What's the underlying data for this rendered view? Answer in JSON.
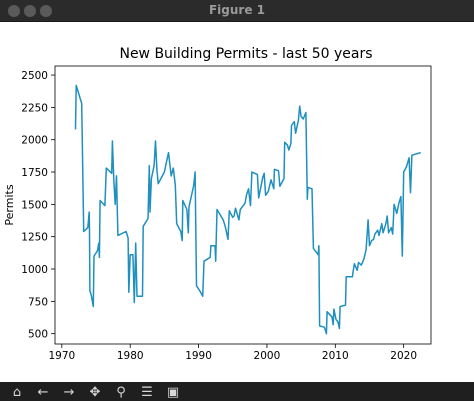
{
  "window": {
    "title": "Figure 1"
  },
  "toolbar": {
    "buttons": [
      {
        "name": "home-icon",
        "glyph": "⌂"
      },
      {
        "name": "back-arrow-icon",
        "glyph": "←"
      },
      {
        "name": "forward-arrow-icon",
        "glyph": "→"
      },
      {
        "name": "pan-icon",
        "glyph": "✥"
      },
      {
        "name": "zoom-icon",
        "glyph": "⚲"
      },
      {
        "name": "configure-subplots-icon",
        "glyph": "☰"
      },
      {
        "name": "save-icon",
        "glyph": "▣"
      }
    ]
  },
  "chart_data": {
    "type": "line",
    "title": "New Building Permits - last 50 years",
    "xlabel": "",
    "ylabel": "Permits",
    "xlim": [
      1969,
      2024
    ],
    "ylim": [
      420,
      2570
    ],
    "xticks": [
      1970,
      1980,
      1990,
      2000,
      2010,
      2020
    ],
    "yticks": [
      500,
      750,
      1000,
      1250,
      1500,
      1750,
      2000,
      2250,
      2500
    ],
    "line_color": "#1f8fbf",
    "grid": false,
    "series": [
      {
        "points": [
          [
            1972.0,
            2080
          ],
          [
            1972.1,
            2420
          ],
          [
            1972.9,
            2280
          ],
          [
            1973.2,
            1290
          ],
          [
            1973.8,
            1320
          ],
          [
            1974.0,
            1440
          ],
          [
            1974.05,
            1290
          ],
          [
            1974.1,
            830
          ],
          [
            1974.3,
            800
          ],
          [
            1974.6,
            710
          ],
          [
            1974.7,
            1100
          ],
          [
            1975.2,
            1140
          ],
          [
            1975.4,
            1200
          ],
          [
            1975.5,
            1090
          ],
          [
            1975.6,
            1530
          ],
          [
            1976.3,
            1490
          ],
          [
            1976.5,
            1780
          ],
          [
            1977.3,
            1740
          ],
          [
            1977.4,
            1990
          ],
          [
            1977.6,
            1690
          ],
          [
            1977.8,
            1500
          ],
          [
            1978.0,
            1720
          ],
          [
            1978.2,
            1260
          ],
          [
            1979.4,
            1290
          ],
          [
            1979.7,
            1240
          ],
          [
            1979.8,
            820
          ],
          [
            1980.0,
            1110
          ],
          [
            1980.4,
            1110
          ],
          [
            1980.6,
            740
          ],
          [
            1980.8,
            1200
          ],
          [
            1981.0,
            790
          ],
          [
            1981.8,
            790
          ],
          [
            1981.9,
            1330
          ],
          [
            1982.6,
            1390
          ],
          [
            1982.8,
            1800
          ],
          [
            1982.9,
            1440
          ],
          [
            1983.1,
            1700
          ],
          [
            1983.5,
            1800
          ],
          [
            1983.7,
            1990
          ],
          [
            1983.9,
            1770
          ],
          [
            1984.1,
            1660
          ],
          [
            1985.0,
            1750
          ],
          [
            1985.2,
            1800
          ],
          [
            1985.6,
            1900
          ],
          [
            1986.0,
            1720
          ],
          [
            1986.3,
            1780
          ],
          [
            1986.6,
            1650
          ],
          [
            1986.8,
            1350
          ],
          [
            1987.4,
            1290
          ],
          [
            1987.6,
            1220
          ],
          [
            1987.7,
            1530
          ],
          [
            1988.3,
            1460
          ],
          [
            1988.5,
            1280
          ],
          [
            1988.6,
            1480
          ],
          [
            1989.3,
            1650
          ],
          [
            1989.5,
            1750
          ],
          [
            1989.7,
            870
          ],
          [
            1990.2,
            830
          ],
          [
            1990.6,
            790
          ],
          [
            1990.8,
            1060
          ],
          [
            1991.7,
            1090
          ],
          [
            1991.8,
            1180
          ],
          [
            1992.4,
            1180
          ],
          [
            1992.5,
            1060
          ],
          [
            1992.7,
            1460
          ],
          [
            1993.6,
            1380
          ],
          [
            1993.9,
            1330
          ],
          [
            1994.3,
            1230
          ],
          [
            1994.5,
            1450
          ],
          [
            1995.0,
            1400
          ],
          [
            1995.2,
            1410
          ],
          [
            1995.4,
            1470
          ],
          [
            1995.9,
            1380
          ],
          [
            1996.1,
            1460
          ],
          [
            1996.8,
            1510
          ],
          [
            1997.0,
            1570
          ],
          [
            1997.3,
            1620
          ],
          [
            1997.6,
            1490
          ],
          [
            1997.8,
            1750
          ],
          [
            1998.6,
            1730
          ],
          [
            1998.8,
            1550
          ],
          [
            1999.4,
            1710
          ],
          [
            1999.6,
            1740
          ],
          [
            1999.8,
            1570
          ],
          [
            2000.2,
            1600
          ],
          [
            2000.6,
            1690
          ],
          [
            2001.0,
            1620
          ],
          [
            2001.1,
            1770
          ],
          [
            2001.7,
            1760
          ],
          [
            2001.9,
            1640
          ],
          [
            2002.5,
            1700
          ],
          [
            2002.6,
            1980
          ],
          [
            2003.0,
            1960
          ],
          [
            2003.2,
            1920
          ],
          [
            2003.5,
            1970
          ],
          [
            2003.6,
            2110
          ],
          [
            2004.0,
            2140
          ],
          [
            2004.2,
            2050
          ],
          [
            2004.6,
            2150
          ],
          [
            2004.8,
            2260
          ],
          [
            2005.0,
            2180
          ],
          [
            2005.3,
            2160
          ],
          [
            2005.7,
            2210
          ],
          [
            2005.9,
            1540
          ],
          [
            2006.0,
            1630
          ],
          [
            2006.6,
            1620
          ],
          [
            2006.8,
            1160
          ],
          [
            2007.5,
            1110
          ],
          [
            2007.6,
            1180
          ],
          [
            2007.7,
            560
          ],
          [
            2008.4,
            550
          ],
          [
            2008.7,
            500
          ],
          [
            2008.8,
            670
          ],
          [
            2009.5,
            630
          ],
          [
            2009.7,
            570
          ],
          [
            2009.8,
            690
          ],
          [
            2010.1,
            610
          ],
          [
            2010.4,
            590
          ],
          [
            2010.6,
            540
          ],
          [
            2010.7,
            710
          ],
          [
            2011.5,
            720
          ],
          [
            2011.6,
            940
          ],
          [
            2012.5,
            940
          ],
          [
            2012.6,
            980
          ],
          [
            2012.8,
            1040
          ],
          [
            2013.2,
            990
          ],
          [
            2013.4,
            1050
          ],
          [
            2013.8,
            1030
          ],
          [
            2014.2,
            1080
          ],
          [
            2014.5,
            1150
          ],
          [
            2014.8,
            1380
          ],
          [
            2015.0,
            1180
          ],
          [
            2015.3,
            1220
          ],
          [
            2015.6,
            1230
          ],
          [
            2015.8,
            1270
          ],
          [
            2016.2,
            1300
          ],
          [
            2016.4,
            1260
          ],
          [
            2016.8,
            1350
          ],
          [
            2017.0,
            1280
          ],
          [
            2017.4,
            1350
          ],
          [
            2017.6,
            1410
          ],
          [
            2017.8,
            1280
          ],
          [
            2018.2,
            1320
          ],
          [
            2018.4,
            1270
          ],
          [
            2018.6,
            1500
          ],
          [
            2019.0,
            1430
          ],
          [
            2019.3,
            1510
          ],
          [
            2019.6,
            1560
          ],
          [
            2019.8,
            1100
          ],
          [
            2020.0,
            1750
          ],
          [
            2020.4,
            1790
          ],
          [
            2020.8,
            1860
          ],
          [
            2021.0,
            1590
          ],
          [
            2021.2,
            1880
          ],
          [
            2022.5,
            1900
          ]
        ]
      }
    ]
  }
}
